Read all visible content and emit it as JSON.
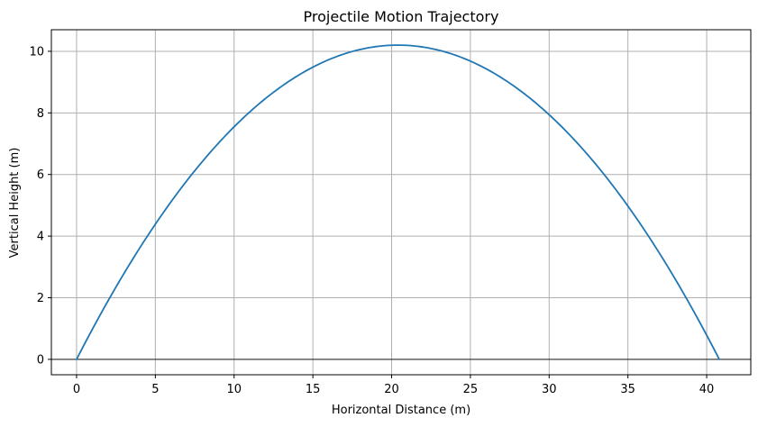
{
  "chart_data": {
    "type": "line",
    "title": "Projectile Motion Trajectory",
    "xlabel": "Horizontal Distance (m)",
    "ylabel": "Vertical Height (m)",
    "xlim": [
      -1.6,
      42.8
    ],
    "ylim": [
      -0.5,
      10.7
    ],
    "xticks": [
      0,
      5,
      10,
      15,
      20,
      25,
      30,
      35,
      40
    ],
    "yticks": [
      0,
      2,
      4,
      6,
      8,
      10
    ],
    "xtick_labels": [
      "0",
      "5",
      "10",
      "15",
      "20",
      "25",
      "30",
      "35",
      "40"
    ],
    "ytick_labels": [
      "0",
      "2",
      "4",
      "6",
      "8",
      "10"
    ],
    "grid": true,
    "zero_line": true,
    "series": [
      {
        "color": "#1f77b4",
        "projectile": {
          "range": 40.8,
          "max_height": 10.2
        },
        "x": [
          0,
          2.04,
          4.08,
          6.12,
          8.16,
          10.2,
          12.24,
          14.28,
          16.32,
          18.36,
          20.4,
          22.44,
          24.48,
          26.52,
          28.56,
          30.6,
          32.64,
          34.68,
          36.72,
          38.76,
          40.8
        ],
        "y": [
          0,
          1.938,
          3.672,
          5.202,
          6.528,
          7.65,
          8.568,
          9.282,
          9.792,
          10.098,
          10.2,
          10.098,
          9.792,
          9.282,
          8.568,
          7.65,
          6.528,
          5.202,
          3.672,
          1.938,
          0
        ]
      }
    ]
  }
}
